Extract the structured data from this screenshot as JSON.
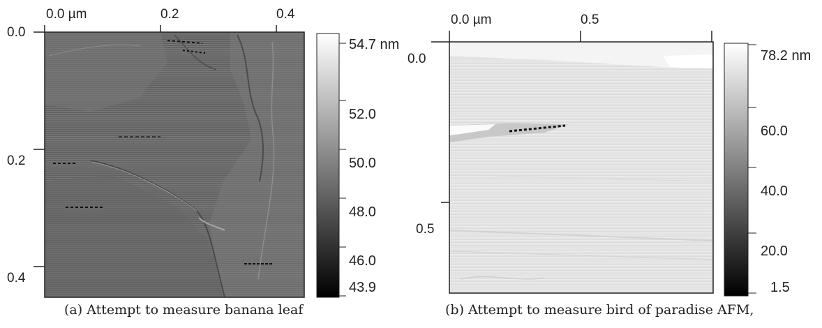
{
  "panel_a": {
    "x_ticks": [
      "0.0 µm",
      "0.2",
      "0.4"
    ],
    "y_ticks": [
      "0.0",
      "0.2",
      "0.4"
    ],
    "colorbar": [
      "54.7 nm",
      "52.0",
      "50.0",
      "48.0",
      "46.0",
      "43.9"
    ],
    "colorbar_range": [
      43.9,
      54.7
    ],
    "image_tone": "dark-gray",
    "caption": "(a) Attempt to measure banana leaf"
  },
  "panel_b": {
    "x_ticks": [
      "0.0 µm",
      "0.5"
    ],
    "y_ticks": [
      "0.0",
      "0.5"
    ],
    "colorbar": [
      "78.2 nm",
      "60.0",
      "40.0",
      "20.0",
      "1.5"
    ],
    "colorbar_range": [
      1.5,
      78.2
    ],
    "image_tone": "light-gray",
    "caption": "(b) Attempt to measure bird of paradise AFM,"
  },
  "colors": {
    "frame": "#222222",
    "panel_a_base": "#6e6e6e",
    "panel_b_base": "#e6e6e6"
  }
}
